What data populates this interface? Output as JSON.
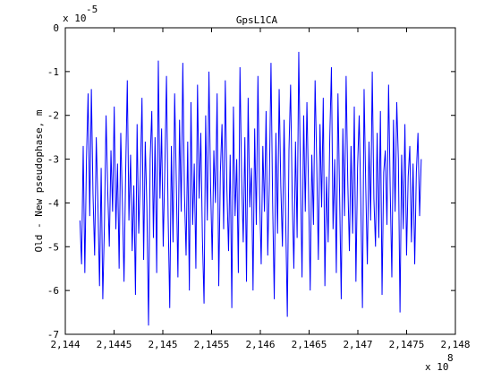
{
  "window": {
    "background": "#ffffff"
  },
  "chart_data": {
    "type": "line",
    "title": "GpsL1CA",
    "xlabel": "",
    "ylabel": "Old - New pseudophase, m",
    "x_exponent_label": "x 10",
    "x_exponent": "8",
    "y_exponent_label": "x 10",
    "y_exponent": "-5",
    "xlim": [
      2.144,
      2.148
    ],
    "ylim": [
      -7,
      0
    ],
    "x_ticks": [
      2.144,
      2.1445,
      2.145,
      2.1455,
      2.146,
      2.1465,
      2.147,
      2.1475,
      2.148
    ],
    "x_tick_labels": [
      "2,144",
      "2,1445",
      "2,145",
      "2,1455",
      "2,146",
      "2,1465",
      "2,147",
      "2,1475",
      "2,148"
    ],
    "y_ticks": [
      -7,
      -6,
      -5,
      -4,
      -3,
      -2,
      -1,
      0
    ],
    "y_tick_labels": [
      "-7",
      "-6",
      "-5",
      "-4",
      "-3",
      "-2",
      "-1",
      "0"
    ],
    "grid": false,
    "series": [
      {
        "color": "#0000ff",
        "x_start": 2.14415,
        "x_end": 2.14765,
        "values": [
          -4.4,
          -5.4,
          -2.7,
          -5.6,
          -3.0,
          -1.5,
          -4.3,
          -1.4,
          -3.8,
          -5.2,
          -2.5,
          -4.0,
          -5.9,
          -3.2,
          -6.2,
          -4.5,
          -2.0,
          -3.7,
          -5.0,
          -2.8,
          -4.2,
          -1.8,
          -4.6,
          -3.1,
          -5.5,
          -2.4,
          -4.0,
          -5.8,
          -3.3,
          -1.2,
          -4.4,
          -2.9,
          -5.1,
          -3.6,
          -6.1,
          -2.2,
          -4.7,
          -3.4,
          -1.6,
          -5.3,
          -2.6,
          -4.1,
          -6.8,
          -3.0,
          -1.9,
          -4.8,
          -2.5,
          -5.6,
          -0.75,
          -3.9,
          -2.3,
          -5.0,
          -3.2,
          -1.1,
          -4.3,
          -6.4,
          -2.7,
          -4.9,
          -1.5,
          -3.5,
          -5.7,
          -2.1,
          -4.2,
          -0.8,
          -3.8,
          -5.2,
          -2.6,
          -6.0,
          -1.7,
          -4.5,
          -3.1,
          -5.5,
          -1.3,
          -3.9,
          -2.4,
          -4.8,
          -6.3,
          -2.0,
          -4.4,
          -1.0,
          -3.6,
          -5.3,
          -2.8,
          -4.0,
          -1.5,
          -5.9,
          -3.3,
          -2.2,
          -4.6,
          -1.2,
          -3.7,
          -5.1,
          -2.9,
          -6.4,
          -1.8,
          -4.3,
          -3.0,
          -5.6,
          -0.9,
          -3.4,
          -4.9,
          -2.5,
          -5.8,
          -1.6,
          -4.1,
          -3.2,
          -6.0,
          -2.3,
          -4.5,
          -1.1,
          -3.8,
          -5.4,
          -2.7,
          -4.2,
          -1.9,
          -5.2,
          -3.5,
          -0.8,
          -4.0,
          -6.2,
          -2.4,
          -4.7,
          -1.4,
          -3.6,
          -5.0,
          -2.1,
          -4.4,
          -6.6,
          -2.8,
          -1.3,
          -3.9,
          -5.5,
          -2.6,
          -4.8,
          -0.55,
          -3.3,
          -5.7,
          -2.0,
          -4.2,
          -1.7,
          -3.7,
          -6.0,
          -2.9,
          -4.5,
          -1.2,
          -3.1,
          -5.3,
          -2.2,
          -4.1,
          -1.6,
          -5.9,
          -3.4,
          -4.9,
          -2.5,
          -0.9,
          -4.6,
          -3.0,
          -5.6,
          -1.5,
          -3.8,
          -6.2,
          -2.3,
          -4.3,
          -1.1,
          -3.5,
          -5.1,
          -2.7,
          -4.7,
          -1.8,
          -5.8,
          -3.2,
          -2.0,
          -4.0,
          -6.4,
          -1.4,
          -3.6,
          -5.4,
          -2.6,
          -4.4,
          -1.0,
          -3.9,
          -5.0,
          -2.4,
          -4.8,
          -1.9,
          -6.1,
          -3.3,
          -2.8,
          -4.5,
          -1.3,
          -3.7,
          -5.7,
          -2.1,
          -4.2,
          -1.7,
          -3.0,
          -6.5,
          -2.9,
          -4.6,
          -2.2,
          -5.2,
          -3.4,
          -2.7,
          -4.9,
          -3.1,
          -5.4,
          -3.3,
          -2.4,
          -4.3,
          -3.0
        ]
      }
    ]
  }
}
